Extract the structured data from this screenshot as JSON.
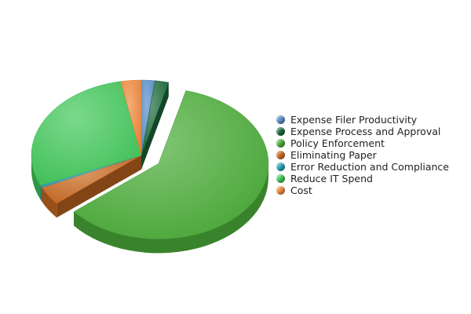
{
  "chart_data": {
    "type": "pie",
    "title": "",
    "three_d": true,
    "legend_position": "right",
    "slices": [
      {
        "label": "Expense Filer Productivity",
        "value": 2,
        "color": "#5b8fc9",
        "exploded": false
      },
      {
        "label": "Expense Process and Approval",
        "value": 2,
        "color": "#1d6b3c",
        "exploded": false
      },
      {
        "label": "Policy Enforcement",
        "value": 60,
        "color": "#4cae3a",
        "exploded": true
      },
      {
        "label": "Eliminating Paper",
        "value": 4,
        "color": "#c96a22",
        "exploded": false
      },
      {
        "label": "Error Reduction and Compliance",
        "value": 0.5,
        "color": "#2aa3b8",
        "exploded": false
      },
      {
        "label": "Reduce IT Spend",
        "value": 28.5,
        "color": "#43c85a",
        "exploded": false
      },
      {
        "label": "Cost",
        "value": 3,
        "color": "#f08a3c",
        "exploded": false
      }
    ]
  }
}
